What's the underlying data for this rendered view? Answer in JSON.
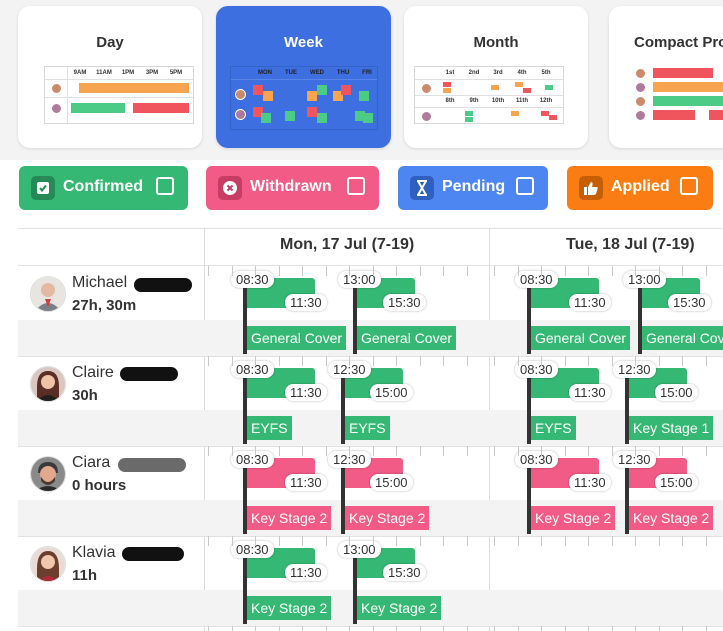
{
  "colors": {
    "confirmed": "#35b873",
    "withdrawn": "#f15b86",
    "pending": "#4d86f0",
    "applied": "#f97d12",
    "active_view": "#3d6fe0"
  },
  "views": [
    {
      "id": "day",
      "label": "Day",
      "active": false
    },
    {
      "id": "week",
      "label": "Week",
      "active": true
    },
    {
      "id": "month",
      "label": "Month",
      "active": false
    },
    {
      "id": "compact",
      "label": "Compact Pro",
      "active": false
    }
  ],
  "thumbs": {
    "day_times": [
      "9AM",
      "11AM",
      "1PM",
      "3PM",
      "5PM"
    ],
    "week_days": [
      "MON",
      "TUE",
      "WED",
      "THU",
      "FRI"
    ],
    "month_row1": [
      "1st",
      "2nd",
      "3rd",
      "4th",
      "5th"
    ],
    "month_row2": [
      "8th",
      "9th",
      "10th",
      "11th",
      "12th"
    ]
  },
  "statuses": [
    {
      "id": "confirmed",
      "label": "Confirmed",
      "icon": "check-icon"
    },
    {
      "id": "withdrawn",
      "label": "Withdrawn",
      "icon": "x-circle-icon"
    },
    {
      "id": "pending",
      "label": "Pending",
      "icon": "hourglass-icon"
    },
    {
      "id": "applied",
      "label": "Applied",
      "icon": "thumbs-up-icon"
    }
  ],
  "days": [
    "Mon, 17 Jul (7-19)",
    "Tue, 18 Jul (7-19)"
  ],
  "people": [
    {
      "name": "Michael",
      "hours": "27h, 30m",
      "shifts": [
        {
          "day": 0,
          "start": "08:30",
          "end": "11:30",
          "label": "General Cover",
          "status": "confirmed"
        },
        {
          "day": 0,
          "start": "13:00",
          "end": "15:30",
          "label": "General Cover",
          "status": "confirmed"
        },
        {
          "day": 1,
          "start": "08:30",
          "end": "11:30",
          "label": "General Cover",
          "status": "confirmed"
        },
        {
          "day": 1,
          "start": "13:00",
          "end": "15:30",
          "label": "General Cover",
          "status": "confirmed"
        }
      ]
    },
    {
      "name": "Claire",
      "hours": "30h",
      "shifts": [
        {
          "day": 0,
          "start": "08:30",
          "end": "11:30",
          "label": "EYFS",
          "status": "confirmed"
        },
        {
          "day": 0,
          "start": "12:30",
          "end": "15:00",
          "label": "EYFS",
          "status": "confirmed"
        },
        {
          "day": 1,
          "start": "08:30",
          "end": "11:30",
          "label": "EYFS",
          "status": "confirmed"
        },
        {
          "day": 1,
          "start": "12:30",
          "end": "15:00",
          "label": "Key Stage 1",
          "status": "confirmed"
        }
      ]
    },
    {
      "name": "Ciara",
      "hours": "0 hours",
      "shifts": [
        {
          "day": 0,
          "start": "08:30",
          "end": "11:30",
          "label": "Key Stage 2",
          "status": "withdrawn"
        },
        {
          "day": 0,
          "start": "12:30",
          "end": "15:00",
          "label": "Key Stage 2",
          "status": "withdrawn"
        },
        {
          "day": 1,
          "start": "08:30",
          "end": "11:30",
          "label": "Key Stage 2",
          "status": "withdrawn"
        },
        {
          "day": 1,
          "start": "12:30",
          "end": "15:00",
          "label": "Key Stage 2",
          "status": "withdrawn"
        }
      ]
    },
    {
      "name": "Klavia",
      "hours": "11h",
      "shifts": [
        {
          "day": 0,
          "start": "08:30",
          "end": "11:30",
          "label": "Key Stage 2",
          "status": "confirmed"
        },
        {
          "day": 0,
          "start": "13:00",
          "end": "15:30",
          "label": "Key Stage 2",
          "status": "confirmed"
        }
      ]
    }
  ]
}
